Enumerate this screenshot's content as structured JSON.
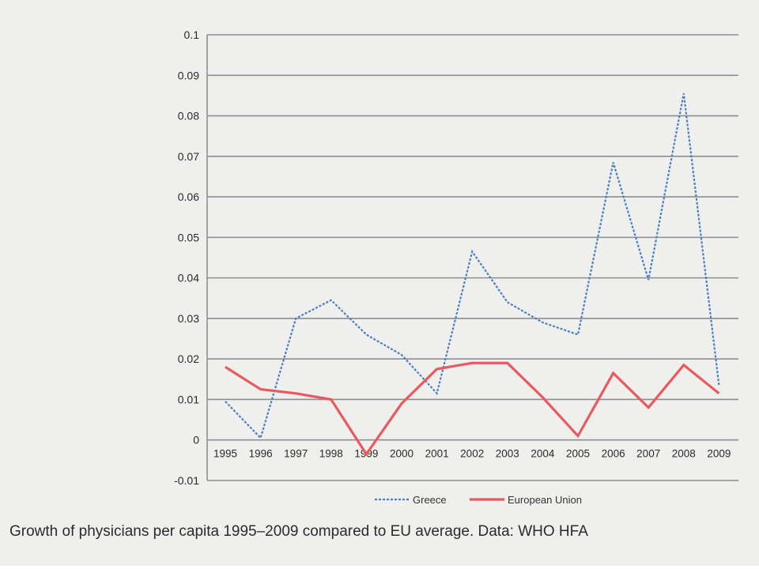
{
  "caption": "Growth of physicians per capita 1995–2009 compared to EU average. Data: WHO HFA",
  "chart_data": {
    "type": "line",
    "title": "",
    "xlabel": "",
    "ylabel": "",
    "categories": [
      "1995",
      "1996",
      "1997",
      "1998",
      "1999",
      "2000",
      "2001",
      "2002",
      "2003",
      "2004",
      "2005",
      "2006",
      "2007",
      "2008",
      "2009"
    ],
    "yticks": [
      "0.1",
      "0.09",
      "0.08",
      "0.07",
      "0.06",
      "0.05",
      "0.04",
      "0.03",
      "0.02",
      "0.01",
      "0",
      "-0.01"
    ],
    "ylim": [
      -0.01,
      0.1
    ],
    "grid": true,
    "legend_position": "bottom",
    "series": [
      {
        "name": "Greece",
        "color": "#4a7fc1",
        "style": "dashed",
        "values": [
          0.0095,
          0.0005,
          0.03,
          0.0345,
          0.026,
          0.021,
          0.0115,
          0.0465,
          0.034,
          0.029,
          0.026,
          0.0685,
          0.0395,
          0.0855,
          0.0135
        ]
      },
      {
        "name": "European Union",
        "color": "#e85a5e",
        "style": "solid",
        "values": [
          0.018,
          0.0125,
          0.0115,
          0.01,
          -0.0035,
          0.009,
          0.0175,
          0.019,
          0.019,
          0.0105,
          0.001,
          0.0165,
          0.008,
          0.0185,
          0.0115
        ]
      }
    ]
  }
}
